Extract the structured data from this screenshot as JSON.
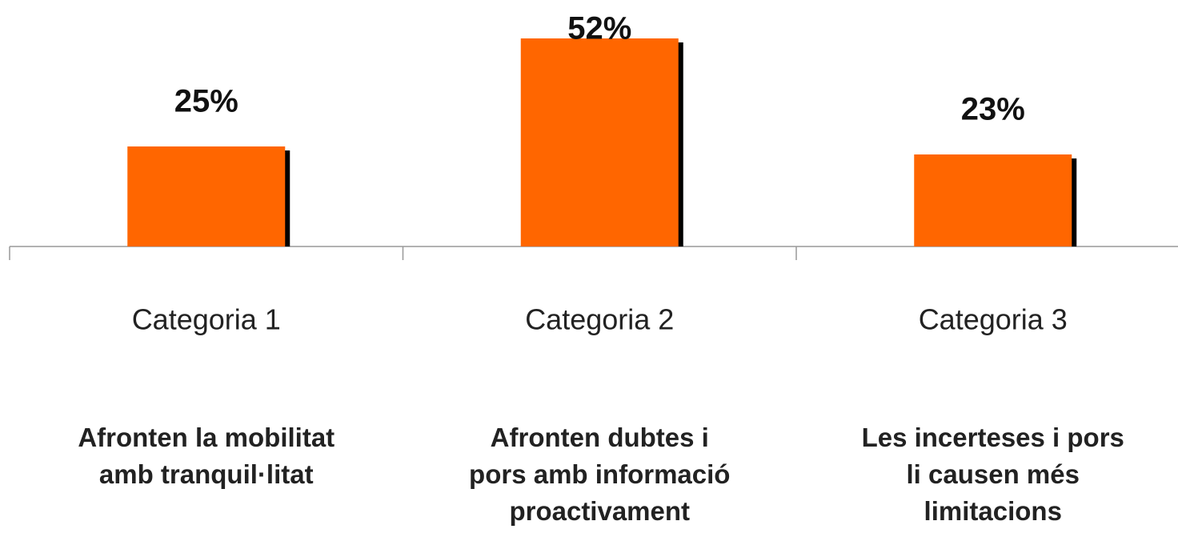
{
  "chart_data": {
    "type": "bar",
    "categories": [
      "Categoria 1",
      "Categoria 2",
      "Categoria 3"
    ],
    "values": [
      25,
      52,
      23
    ],
    "value_labels": [
      "25%",
      "52%",
      "23%"
    ],
    "descriptions": [
      "Afronten la mobilitat amb tranquil·litat",
      "Afronten dubtes i pors amb informació proactivament",
      "Les incerteses i pors li causen més limitacions"
    ],
    "color": "#ff6600"
  }
}
